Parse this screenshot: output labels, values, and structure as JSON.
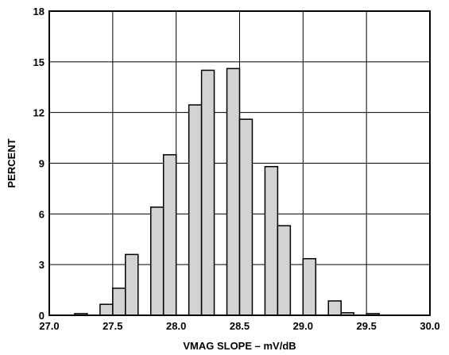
{
  "chart_data": {
    "type": "bar",
    "title": "",
    "xlabel": "VMAG SLOPE – mV/dB",
    "ylabel": "PERCENT",
    "xlim": [
      27.0,
      30.0
    ],
    "ylim": [
      0,
      18
    ],
    "x_ticks": [
      27.0,
      27.5,
      28.0,
      28.5,
      29.0,
      29.5,
      30.0
    ],
    "x_tick_labels": [
      "27.0",
      "27.5",
      "28.0",
      "28.5",
      "29.0",
      "29.5",
      "30.0"
    ],
    "y_ticks": [
      0,
      3,
      6,
      9,
      12,
      15,
      18
    ],
    "y_tick_labels": [
      "0",
      "3",
      "6",
      "9",
      "12",
      "15",
      "18"
    ],
    "grid": true,
    "bin_width": 0.1,
    "bars": [
      {
        "x_start": 27.2,
        "value": 0.1
      },
      {
        "x_start": 27.4,
        "value": 0.65
      },
      {
        "x_start": 27.5,
        "value": 1.6
      },
      {
        "x_start": 27.6,
        "value": 3.6
      },
      {
        "x_start": 27.8,
        "value": 6.4
      },
      {
        "x_start": 27.9,
        "value": 9.5
      },
      {
        "x_start": 28.1,
        "value": 12.45
      },
      {
        "x_start": 28.2,
        "value": 14.5
      },
      {
        "x_start": 28.4,
        "value": 14.6
      },
      {
        "x_start": 28.5,
        "value": 11.6
      },
      {
        "x_start": 28.7,
        "value": 8.8
      },
      {
        "x_start": 28.8,
        "value": 5.3
      },
      {
        "x_start": 29.0,
        "value": 3.35
      },
      {
        "x_start": 29.2,
        "value": 0.85
      },
      {
        "x_start": 29.3,
        "value": 0.15
      },
      {
        "x_start": 29.5,
        "value": 0.1
      }
    ],
    "bar_color": "#d3d3d3",
    "bar_edge_color": "#000000"
  }
}
